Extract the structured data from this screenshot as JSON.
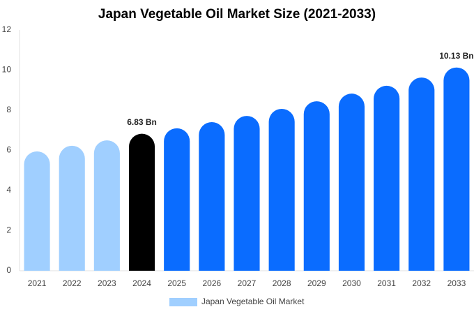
{
  "chart_data": {
    "type": "bar",
    "title": "Japan Vegetable Oil Market Size (2021-2033)",
    "categories": [
      "2021",
      "2022",
      "2023",
      "2024",
      "2025",
      "2026",
      "2027",
      "2028",
      "2029",
      "2030",
      "2031",
      "2032",
      "2033"
    ],
    "series": [
      {
        "name": "Japan Vegetable Oil Market",
        "color": "#a0cfff",
        "values": [
          5.95,
          6.23,
          6.5,
          6.83,
          7.1,
          7.41,
          7.72,
          8.07,
          8.45,
          8.83,
          9.22,
          9.63,
          10.13
        ],
        "colors": [
          "#a0cfff",
          "#a0cfff",
          "#a0cfff",
          "#000000",
          "#0a6cff",
          "#0a6cff",
          "#0a6cff",
          "#0a6cff",
          "#0a6cff",
          "#0a6cff",
          "#0a6cff",
          "#0a6cff",
          "#0a6cff"
        ],
        "value_labels": [
          null,
          null,
          null,
          "6.83 Bn",
          null,
          null,
          null,
          null,
          null,
          null,
          null,
          null,
          "10.13 Bn"
        ]
      }
    ],
    "ylim": [
      0,
      12
    ],
    "yticks": [
      0,
      2,
      4,
      6,
      8,
      10,
      12
    ],
    "grid": false,
    "legend": "bottom"
  }
}
